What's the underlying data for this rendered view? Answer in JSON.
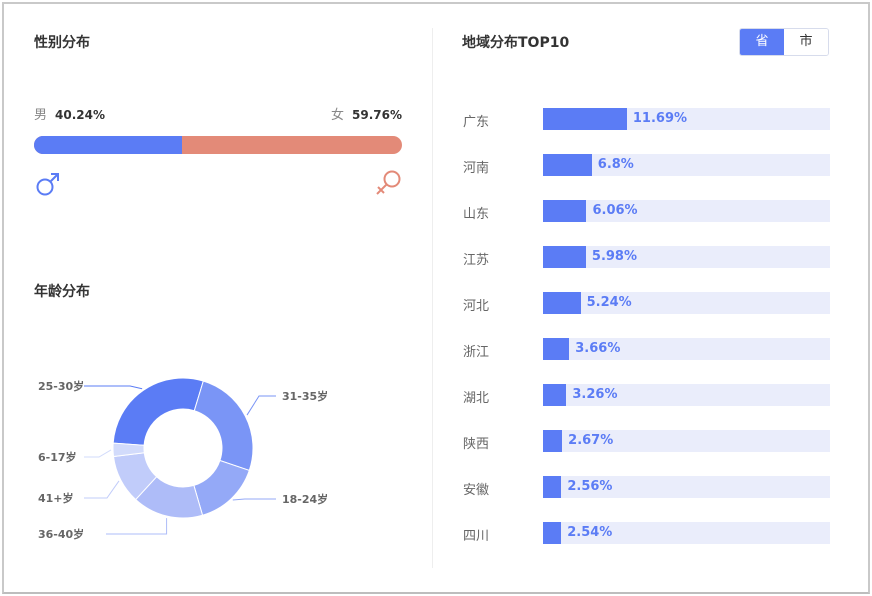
{
  "gender": {
    "title": "性别分布",
    "male": {
      "label": "男",
      "value_text": "40.24%",
      "value": 40.24,
      "icon": "male-icon",
      "color": "#5b7cf5"
    },
    "female": {
      "label": "女",
      "value_text": "59.76%",
      "value": 59.76,
      "icon": "female-icon",
      "color": "#e38a78"
    }
  },
  "age": {
    "title": "年龄分布"
  },
  "region": {
    "title": "地域分布TOP10",
    "toggle": {
      "province": "省",
      "city": "市",
      "active": "province"
    }
  },
  "colors": {
    "accent": "#5b7cf5",
    "track": "#eaedfb",
    "female": "#e38a78"
  },
  "chart_data": [
    {
      "type": "pie",
      "title": "年龄分布",
      "donut": true,
      "categories": [
        "25-30岁",
        "31-35岁",
        "18-24岁",
        "36-40岁",
        "41+岁",
        "6-17岁"
      ],
      "values": [
        28,
        25,
        15,
        16,
        11,
        3
      ],
      "colors": [
        "#5b7cf5",
        "#7a95f6",
        "#94a9f7",
        "#aebcf8",
        "#c1ccfa",
        "#d2dbfb"
      ]
    },
    {
      "type": "bar",
      "title": "地域分布TOP10",
      "orientation": "horizontal",
      "categories": [
        "广东",
        "河南",
        "山东",
        "江苏",
        "河北",
        "浙江",
        "湖北",
        "陕西",
        "安徽",
        "四川"
      ],
      "values": [
        11.69,
        6.8,
        6.06,
        5.98,
        5.24,
        3.66,
        3.26,
        2.67,
        2.56,
        2.54
      ],
      "value_labels": [
        "11.69%",
        "6.8%",
        "6.06%",
        "5.98%",
        "5.24%",
        "3.66%",
        "3.26%",
        "2.67%",
        "2.56%",
        "2.54%"
      ],
      "xlim": [
        0,
        100
      ]
    }
  ]
}
